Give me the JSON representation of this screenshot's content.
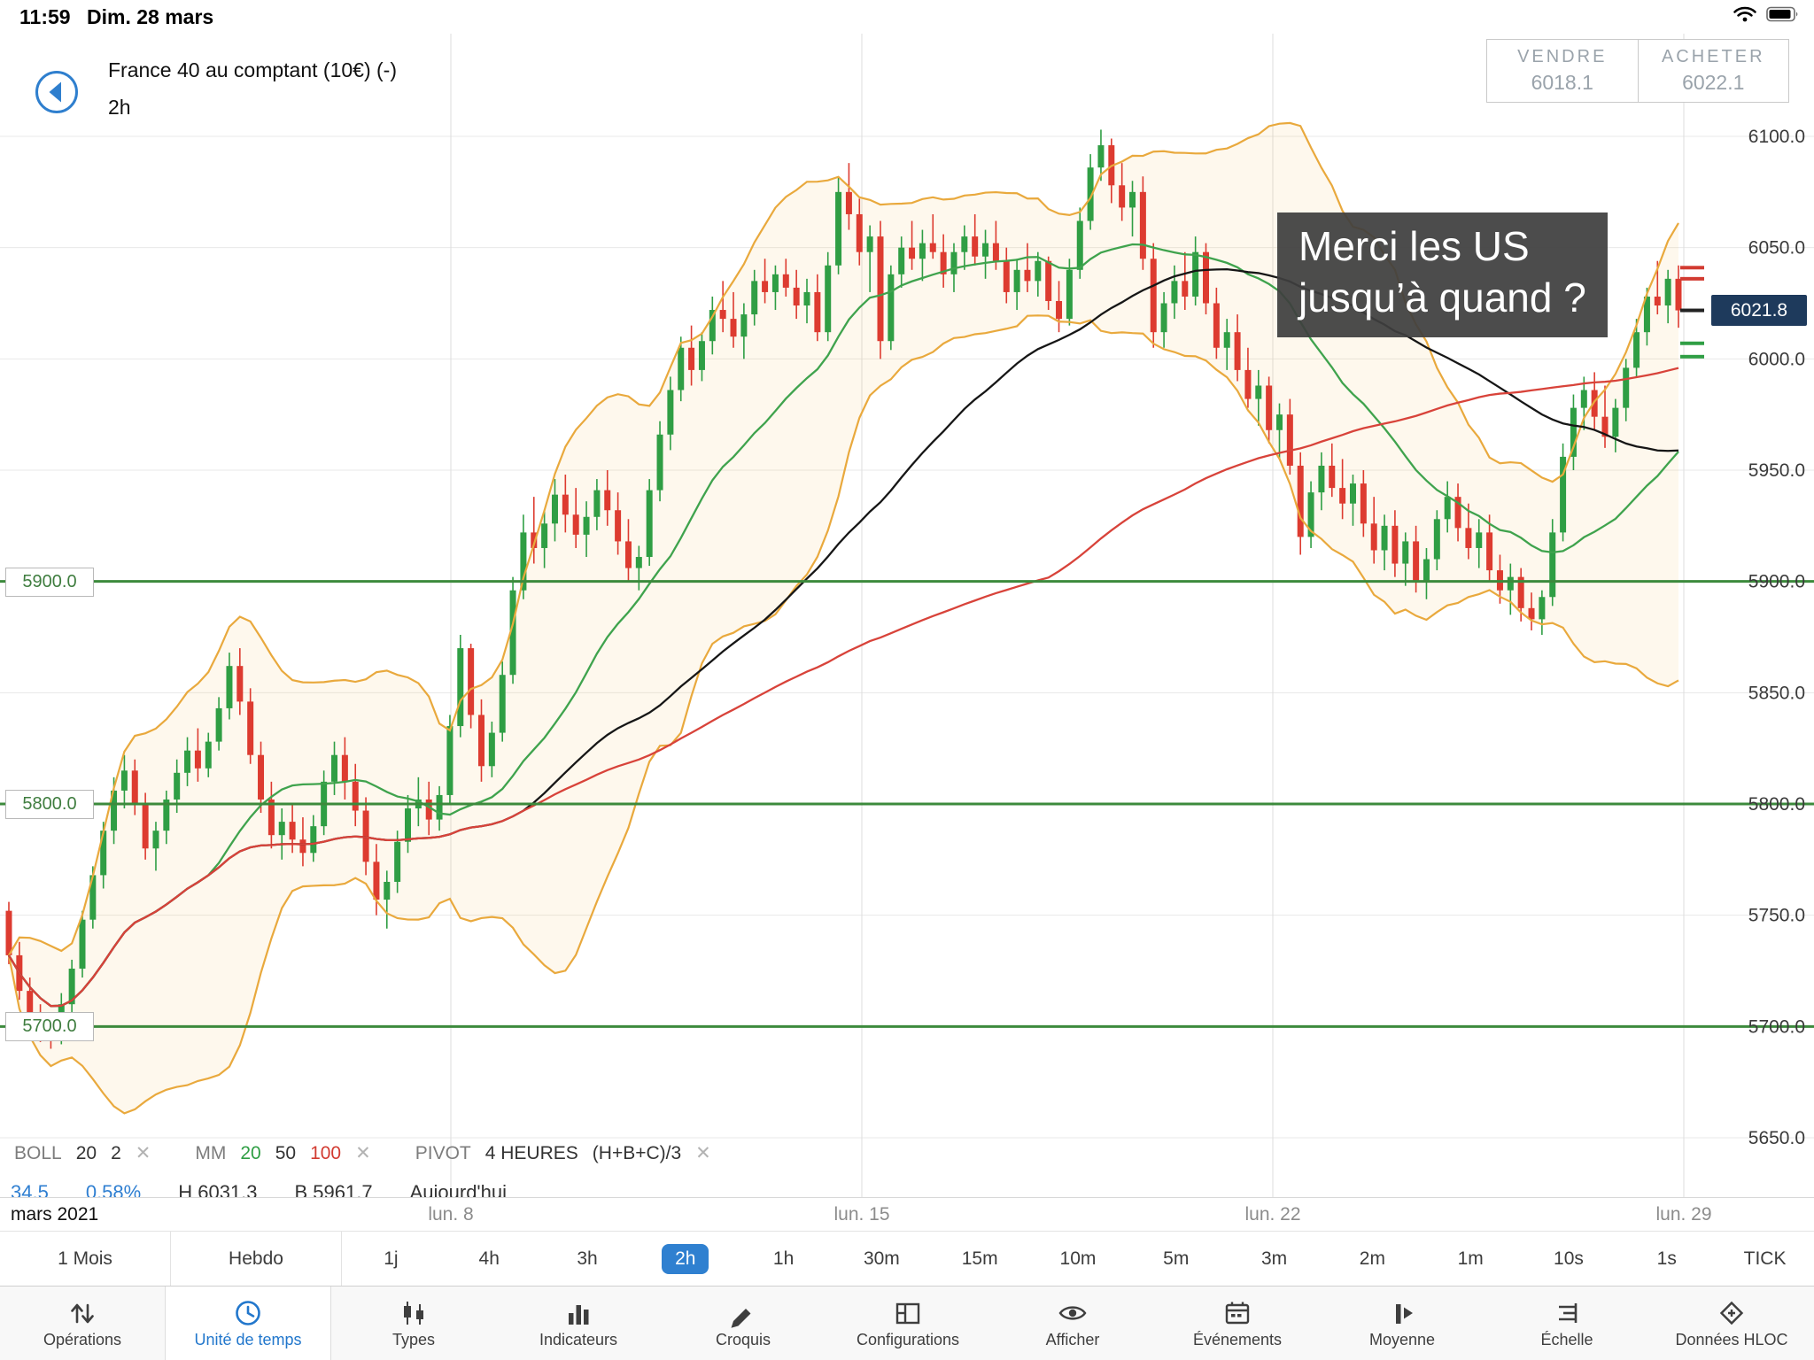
{
  "status_bar": {
    "time": "11:59",
    "date": "Dim. 28 mars"
  },
  "header": {
    "title": "France 40 au comptant (10€) (-)",
    "timeframe": "2h"
  },
  "quote_panel": {
    "sell_label": "VENDRE",
    "sell_price": "6018.1",
    "buy_label": "ACHETER",
    "buy_price": "6022.1"
  },
  "annotation": {
    "line1": "Merci les US",
    "line2": "jusqu’à quand ?"
  },
  "indicator_bar": {
    "boll_label": "BOLL",
    "boll_p1": "20",
    "boll_p2": "2",
    "mm_label": "MM",
    "mm_p1": "20",
    "mm_p2": "50",
    "mm_p3": "100",
    "pivot_label": "PIVOT",
    "pivot_p1": "4 HEURES",
    "pivot_p2": "(H+B+C)/3",
    "remove": "✕"
  },
  "stats_bar": {
    "change": "34.5",
    "change_pct": "0.58%",
    "high": "H 6031.3",
    "low": "B 5961.7",
    "day": "Aujourd'hui"
  },
  "timeframes": {
    "selected": "2h",
    "items": [
      {
        "id": "1-mois",
        "label": "1 Mois",
        "boxed": true
      },
      {
        "id": "hebdo",
        "label": "Hebdo",
        "boxed": true
      },
      {
        "id": "1j",
        "label": "1j"
      },
      {
        "id": "4h",
        "label": "4h"
      },
      {
        "id": "3h",
        "label": "3h"
      },
      {
        "id": "2h",
        "label": "2h"
      },
      {
        "id": "1h",
        "label": "1h"
      },
      {
        "id": "30m",
        "label": "30m"
      },
      {
        "id": "15m",
        "label": "15m"
      },
      {
        "id": "10m",
        "label": "10m"
      },
      {
        "id": "5m",
        "label": "5m"
      },
      {
        "id": "3m",
        "label": "3m"
      },
      {
        "id": "2m",
        "label": "2m"
      },
      {
        "id": "1m",
        "label": "1m"
      },
      {
        "id": "10s",
        "label": "10s"
      },
      {
        "id": "1s",
        "label": "1s"
      },
      {
        "id": "tick",
        "label": "TICK"
      }
    ]
  },
  "toolbar": {
    "selected": "unite-de-temps",
    "items": [
      {
        "id": "operations",
        "label": "Opérations",
        "icon": "sort-arrows"
      },
      {
        "id": "unite-de-temps",
        "label": "Unité de temps",
        "icon": "clock"
      },
      {
        "id": "types",
        "label": "Types",
        "icon": "candles"
      },
      {
        "id": "indicateurs",
        "label": "Indicateurs",
        "icon": "bars"
      },
      {
        "id": "croquis",
        "label": "Croquis",
        "icon": "pencil"
      },
      {
        "id": "configurations",
        "label": "Configurations",
        "icon": "layout"
      },
      {
        "id": "afficher",
        "label": "Afficher",
        "icon": "eye"
      },
      {
        "id": "evenements",
        "label": "Événements",
        "icon": "calendar"
      },
      {
        "id": "moyenne",
        "label": "Moyenne",
        "icon": "average"
      },
      {
        "id": "echelle",
        "label": "Échelle",
        "icon": "scale"
      },
      {
        "id": "donnees-hloc",
        "label": "Données HLOC",
        "icon": "hloc"
      }
    ]
  },
  "chart_data": {
    "type": "candlestick",
    "title": "France 40 au comptant (10€)",
    "interval": "2h",
    "ylim": [
      5650,
      6100
    ],
    "y_ticks": [
      6100,
      6050,
      6000,
      5950,
      5900,
      5850,
      5800,
      5750,
      5700,
      5650
    ],
    "x_axis_labels": [
      "mars 2021",
      "lun. 8",
      "lun. 15",
      "lun. 22",
      "lun. 29"
    ],
    "current_price": 6021.8,
    "pivot_levels": [
      5900,
      5800,
      5700
    ],
    "pivot_marks": [
      {
        "price": 6041,
        "color": "#d23b31"
      },
      {
        "price": 6036,
        "color": "#d23b31"
      },
      {
        "price": 6021.8,
        "color": "#222222"
      },
      {
        "price": 6007,
        "color": "#2f9e44"
      },
      {
        "price": 6001,
        "color": "#2f9e44"
      }
    ],
    "indicators": {
      "bollinger": {
        "period": 20,
        "deviation": 2,
        "color": "#e9a93d"
      },
      "moving_averages": [
        {
          "period": 20,
          "color": "#3fa34d"
        },
        {
          "period": 50,
          "color": "#161616"
        },
        {
          "period": 100,
          "color": "#d8433a"
        }
      ]
    },
    "colors": {
      "up": "#2f9e44",
      "down": "#dd3b30",
      "pivot_line": "#3c8a3c",
      "badge": "#1e3a5c"
    },
    "candles": [
      [
        5752,
        5756,
        5728,
        5732
      ],
      [
        5732,
        5738,
        5712,
        5716
      ],
      [
        5716,
        5722,
        5700,
        5705
      ],
      [
        5705,
        5710,
        5693,
        5698
      ],
      [
        5698,
        5704,
        5690,
        5695
      ],
      [
        5695,
        5715,
        5692,
        5710
      ],
      [
        5710,
        5730,
        5706,
        5726
      ],
      [
        5726,
        5752,
        5722,
        5748
      ],
      [
        5748,
        5772,
        5744,
        5768
      ],
      [
        5768,
        5792,
        5762,
        5788
      ],
      [
        5788,
        5812,
        5782,
        5806
      ],
      [
        5806,
        5822,
        5798,
        5815
      ],
      [
        5815,
        5820,
        5795,
        5800
      ],
      [
        5800,
        5805,
        5775,
        5780
      ],
      [
        5780,
        5792,
        5770,
        5788
      ],
      [
        5788,
        5806,
        5782,
        5802
      ],
      [
        5802,
        5820,
        5796,
        5814
      ],
      [
        5814,
        5830,
        5808,
        5824
      ],
      [
        5824,
        5834,
        5810,
        5816
      ],
      [
        5816,
        5832,
        5812,
        5828
      ],
      [
        5828,
        5848,
        5824,
        5843
      ],
      [
        5843,
        5868,
        5838,
        5862
      ],
      [
        5862,
        5870,
        5840,
        5846
      ],
      [
        5846,
        5852,
        5818,
        5822
      ],
      [
        5822,
        5828,
        5796,
        5802
      ],
      [
        5802,
        5810,
        5780,
        5786
      ],
      [
        5786,
        5798,
        5775,
        5792
      ],
      [
        5792,
        5800,
        5778,
        5784
      ],
      [
        5784,
        5794,
        5772,
        5778
      ],
      [
        5778,
        5795,
        5774,
        5790
      ],
      [
        5790,
        5815,
        5786,
        5810
      ],
      [
        5810,
        5828,
        5804,
        5822
      ],
      [
        5822,
        5830,
        5802,
        5810
      ],
      [
        5810,
        5818,
        5790,
        5797
      ],
      [
        5797,
        5803,
        5768,
        5774
      ],
      [
        5774,
        5782,
        5750,
        5757
      ],
      [
        5757,
        5770,
        5744,
        5765
      ],
      [
        5765,
        5788,
        5760,
        5783
      ],
      [
        5783,
        5804,
        5778,
        5798
      ],
      [
        5798,
        5812,
        5790,
        5802
      ],
      [
        5802,
        5810,
        5786,
        5793
      ],
      [
        5793,
        5808,
        5788,
        5804
      ],
      [
        5804,
        5840,
        5800,
        5835
      ],
      [
        5835,
        5876,
        5830,
        5870
      ],
      [
        5870,
        5872,
        5834,
        5840
      ],
      [
        5840,
        5847,
        5810,
        5817
      ],
      [
        5817,
        5837,
        5812,
        5832
      ],
      [
        5832,
        5864,
        5828,
        5858
      ],
      [
        5858,
        5902,
        5854,
        5896
      ],
      [
        5896,
        5930,
        5892,
        5922
      ],
      [
        5922,
        5938,
        5908,
        5915
      ],
      [
        5915,
        5932,
        5906,
        5926
      ],
      [
        5926,
        5946,
        5918,
        5939
      ],
      [
        5939,
        5948,
        5922,
        5930
      ],
      [
        5930,
        5942,
        5915,
        5921
      ],
      [
        5921,
        5936,
        5911,
        5929
      ],
      [
        5929,
        5946,
        5923,
        5941
      ],
      [
        5941,
        5950,
        5925,
        5932
      ],
      [
        5932,
        5940,
        5912,
        5918
      ],
      [
        5918,
        5928,
        5900,
        5906
      ],
      [
        5906,
        5916,
        5896,
        5911
      ],
      [
        5911,
        5946,
        5907,
        5941
      ],
      [
        5941,
        5972,
        5936,
        5966
      ],
      [
        5966,
        5992,
        5959,
        5986
      ],
      [
        5986,
        6010,
        5981,
        6005
      ],
      [
        6005,
        6015,
        5988,
        5995
      ],
      [
        5995,
        6012,
        5990,
        6008
      ],
      [
        6008,
        6028,
        6002,
        6022
      ],
      [
        6022,
        6035,
        6012,
        6018
      ],
      [
        6018,
        6030,
        6005,
        6010
      ],
      [
        6010,
        6025,
        6000,
        6020
      ],
      [
        6020,
        6040,
        6015,
        6035
      ],
      [
        6035,
        6045,
        6025,
        6030
      ],
      [
        6030,
        6042,
        6022,
        6038
      ],
      [
        6038,
        6045,
        6028,
        6032
      ],
      [
        6032,
        6040,
        6018,
        6024
      ],
      [
        6024,
        6036,
        6016,
        6030
      ],
      [
        6030,
        6038,
        6008,
        6012
      ],
      [
        6012,
        6048,
        6008,
        6042
      ],
      [
        6042,
        6082,
        6038,
        6075
      ],
      [
        6075,
        6088,
        6058,
        6065
      ],
      [
        6065,
        6072,
        6042,
        6048
      ],
      [
        6048,
        6060,
        6030,
        6055
      ],
      [
        6055,
        6062,
        6000,
        6008
      ],
      [
        6008,
        6042,
        6004,
        6038
      ],
      [
        6038,
        6055,
        6032,
        6050
      ],
      [
        6050,
        6062,
        6040,
        6045
      ],
      [
        6045,
        6058,
        6035,
        6052
      ],
      [
        6052,
        6065,
        6045,
        6048
      ],
      [
        6048,
        6056,
        6032,
        6038
      ],
      [
        6038,
        6052,
        6030,
        6048
      ],
      [
        6048,
        6060,
        6040,
        6055
      ],
      [
        6055,
        6065,
        6042,
        6046
      ],
      [
        6046,
        6058,
        6036,
        6052
      ],
      [
        6052,
        6062,
        6040,
        6044
      ],
      [
        6044,
        6050,
        6025,
        6030
      ],
      [
        6030,
        6045,
        6022,
        6040
      ],
      [
        6040,
        6052,
        6030,
        6035
      ],
      [
        6035,
        6048,
        6028,
        6044
      ],
      [
        6044,
        6046,
        6022,
        6026
      ],
      [
        6026,
        6035,
        6012,
        6018
      ],
      [
        6018,
        6045,
        6015,
        6040
      ],
      [
        6040,
        6068,
        6036,
        6062
      ],
      [
        6062,
        6092,
        6058,
        6086
      ],
      [
        6086,
        6103,
        6080,
        6096
      ],
      [
        6096,
        6099,
        6070,
        6078
      ],
      [
        6078,
        6088,
        6062,
        6068
      ],
      [
        6068,
        6080,
        6055,
        6075
      ],
      [
        6075,
        6082,
        6040,
        6045
      ],
      [
        6045,
        6052,
        6005,
        6012
      ],
      [
        6012,
        6030,
        6005,
        6025
      ],
      [
        6025,
        6042,
        6018,
        6035
      ],
      [
        6035,
        6048,
        6022,
        6028
      ],
      [
        6028,
        6055,
        6024,
        6048
      ],
      [
        6048,
        6052,
        6020,
        6025
      ],
      [
        6025,
        6032,
        6000,
        6005
      ],
      [
        6005,
        6018,
        5995,
        6012
      ],
      [
        6012,
        6020,
        5990,
        5995
      ],
      [
        5995,
        6005,
        5978,
        5982
      ],
      [
        5982,
        5995,
        5970,
        5988
      ],
      [
        5988,
        5992,
        5962,
        5968
      ],
      [
        5968,
        5980,
        5955,
        5975
      ],
      [
        5975,
        5982,
        5948,
        5952
      ],
      [
        5952,
        5958,
        5912,
        5920
      ],
      [
        5920,
        5945,
        5915,
        5940
      ],
      [
        5940,
        5958,
        5932,
        5952
      ],
      [
        5952,
        5962,
        5938,
        5942
      ],
      [
        5942,
        5955,
        5928,
        5935
      ],
      [
        5935,
        5948,
        5925,
        5944
      ],
      [
        5944,
        5950,
        5920,
        5926
      ],
      [
        5926,
        5938,
        5908,
        5914
      ],
      [
        5914,
        5930,
        5905,
        5925
      ],
      [
        5925,
        5932,
        5902,
        5908
      ],
      [
        5908,
        5922,
        5898,
        5918
      ],
      [
        5918,
        5925,
        5895,
        5900
      ],
      [
        5900,
        5915,
        5892,
        5910
      ],
      [
        5910,
        5932,
        5905,
        5928
      ],
      [
        5928,
        5945,
        5922,
        5938
      ],
      [
        5938,
        5944,
        5918,
        5924
      ],
      [
        5924,
        5935,
        5910,
        5915
      ],
      [
        5915,
        5928,
        5906,
        5922
      ],
      [
        5922,
        5930,
        5900,
        5905
      ],
      [
        5905,
        5912,
        5890,
        5896
      ],
      [
        5896,
        5908,
        5885,
        5902
      ],
      [
        5902,
        5906,
        5882,
        5888
      ],
      [
        5888,
        5895,
        5878,
        5883
      ],
      [
        5883,
        5896,
        5876,
        5893
      ],
      [
        5893,
        5928,
        5889,
        5922
      ],
      [
        5922,
        5962,
        5918,
        5956
      ],
      [
        5956,
        5984,
        5950,
        5978
      ],
      [
        5978,
        5992,
        5968,
        5986
      ],
      [
        5986,
        5994,
        5968,
        5974
      ],
      [
        5974,
        5988,
        5960,
        5965
      ],
      [
        5965,
        5982,
        5958,
        5978
      ],
      [
        5978,
        6000,
        5972,
        5996
      ],
      [
        5996,
        6018,
        5992,
        6012
      ],
      [
        6012,
        6032,
        6006,
        6028
      ],
      [
        6028,
        6044,
        6020,
        6024
      ],
      [
        6024,
        6040,
        6016,
        6036
      ],
      [
        6036,
        6042,
        6014,
        6021.8
      ]
    ]
  }
}
